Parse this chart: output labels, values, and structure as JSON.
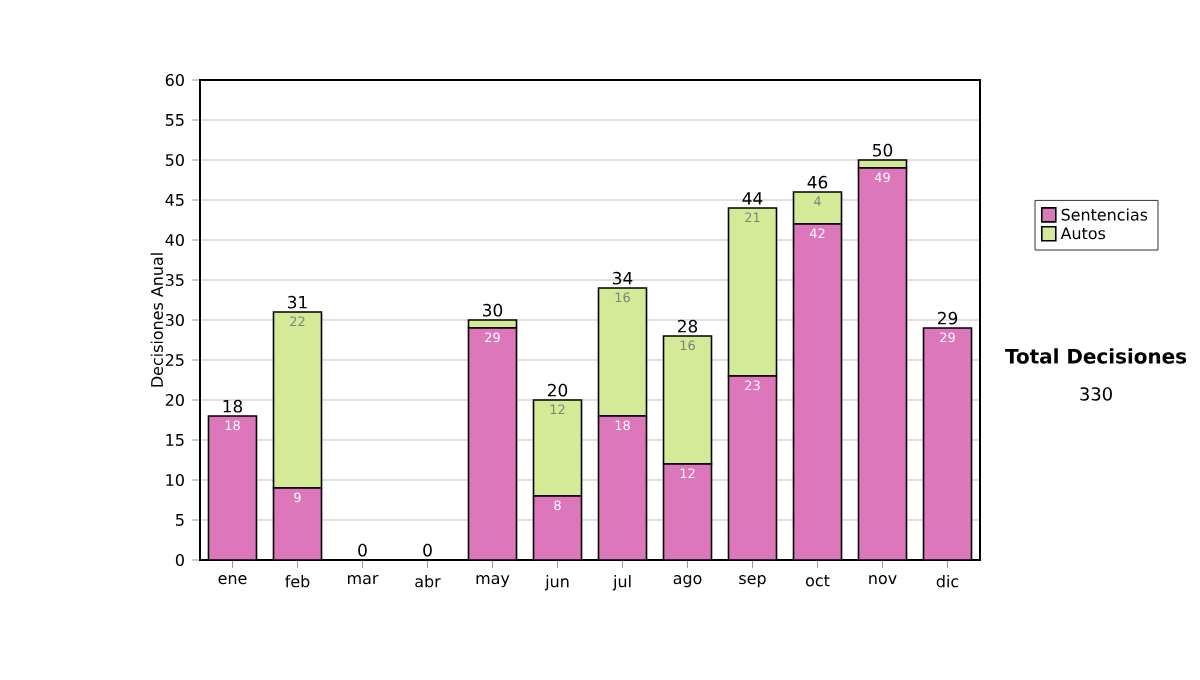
{
  "chart_data": {
    "type": "bar",
    "stacked": true,
    "ylabel": "Decisiones Anual",
    "categories": [
      "ene",
      "feb",
      "mar",
      "abr",
      "may",
      "jun",
      "jul",
      "ago",
      "sep",
      "oct",
      "nov",
      "dic"
    ],
    "series": [
      {
        "name": "Sentencias",
        "color": "#dd77bb",
        "values": [
          18,
          9,
          0,
          0,
          29,
          8,
          18,
          12,
          23,
          42,
          49,
          29
        ],
        "value_labels": [
          "18",
          "9",
          null,
          null,
          "29",
          "8",
          "18",
          "12",
          "23",
          "42",
          "49",
          "29"
        ]
      },
      {
        "name": "Autos",
        "color": "#d4ea96",
        "values": [
          0,
          22,
          0,
          0,
          1,
          12,
          16,
          16,
          21,
          4,
          1,
          0
        ],
        "value_labels": [
          null,
          "22",
          null,
          null,
          null,
          "12",
          "16",
          "16",
          "21",
          "4",
          null,
          null
        ]
      }
    ],
    "totals": [
      "18",
      "31",
      "0",
      "0",
      "30",
      "20",
      "34",
      "28",
      "44",
      "46",
      "50",
      "29"
    ],
    "ylim": [
      0,
      60
    ],
    "yticks": [
      0,
      5,
      10,
      15,
      20,
      25,
      30,
      35,
      40,
      45,
      50,
      55,
      60
    ],
    "grid": "y",
    "legend": "right",
    "annotations": [
      "Total Decisiones",
      "330"
    ]
  }
}
